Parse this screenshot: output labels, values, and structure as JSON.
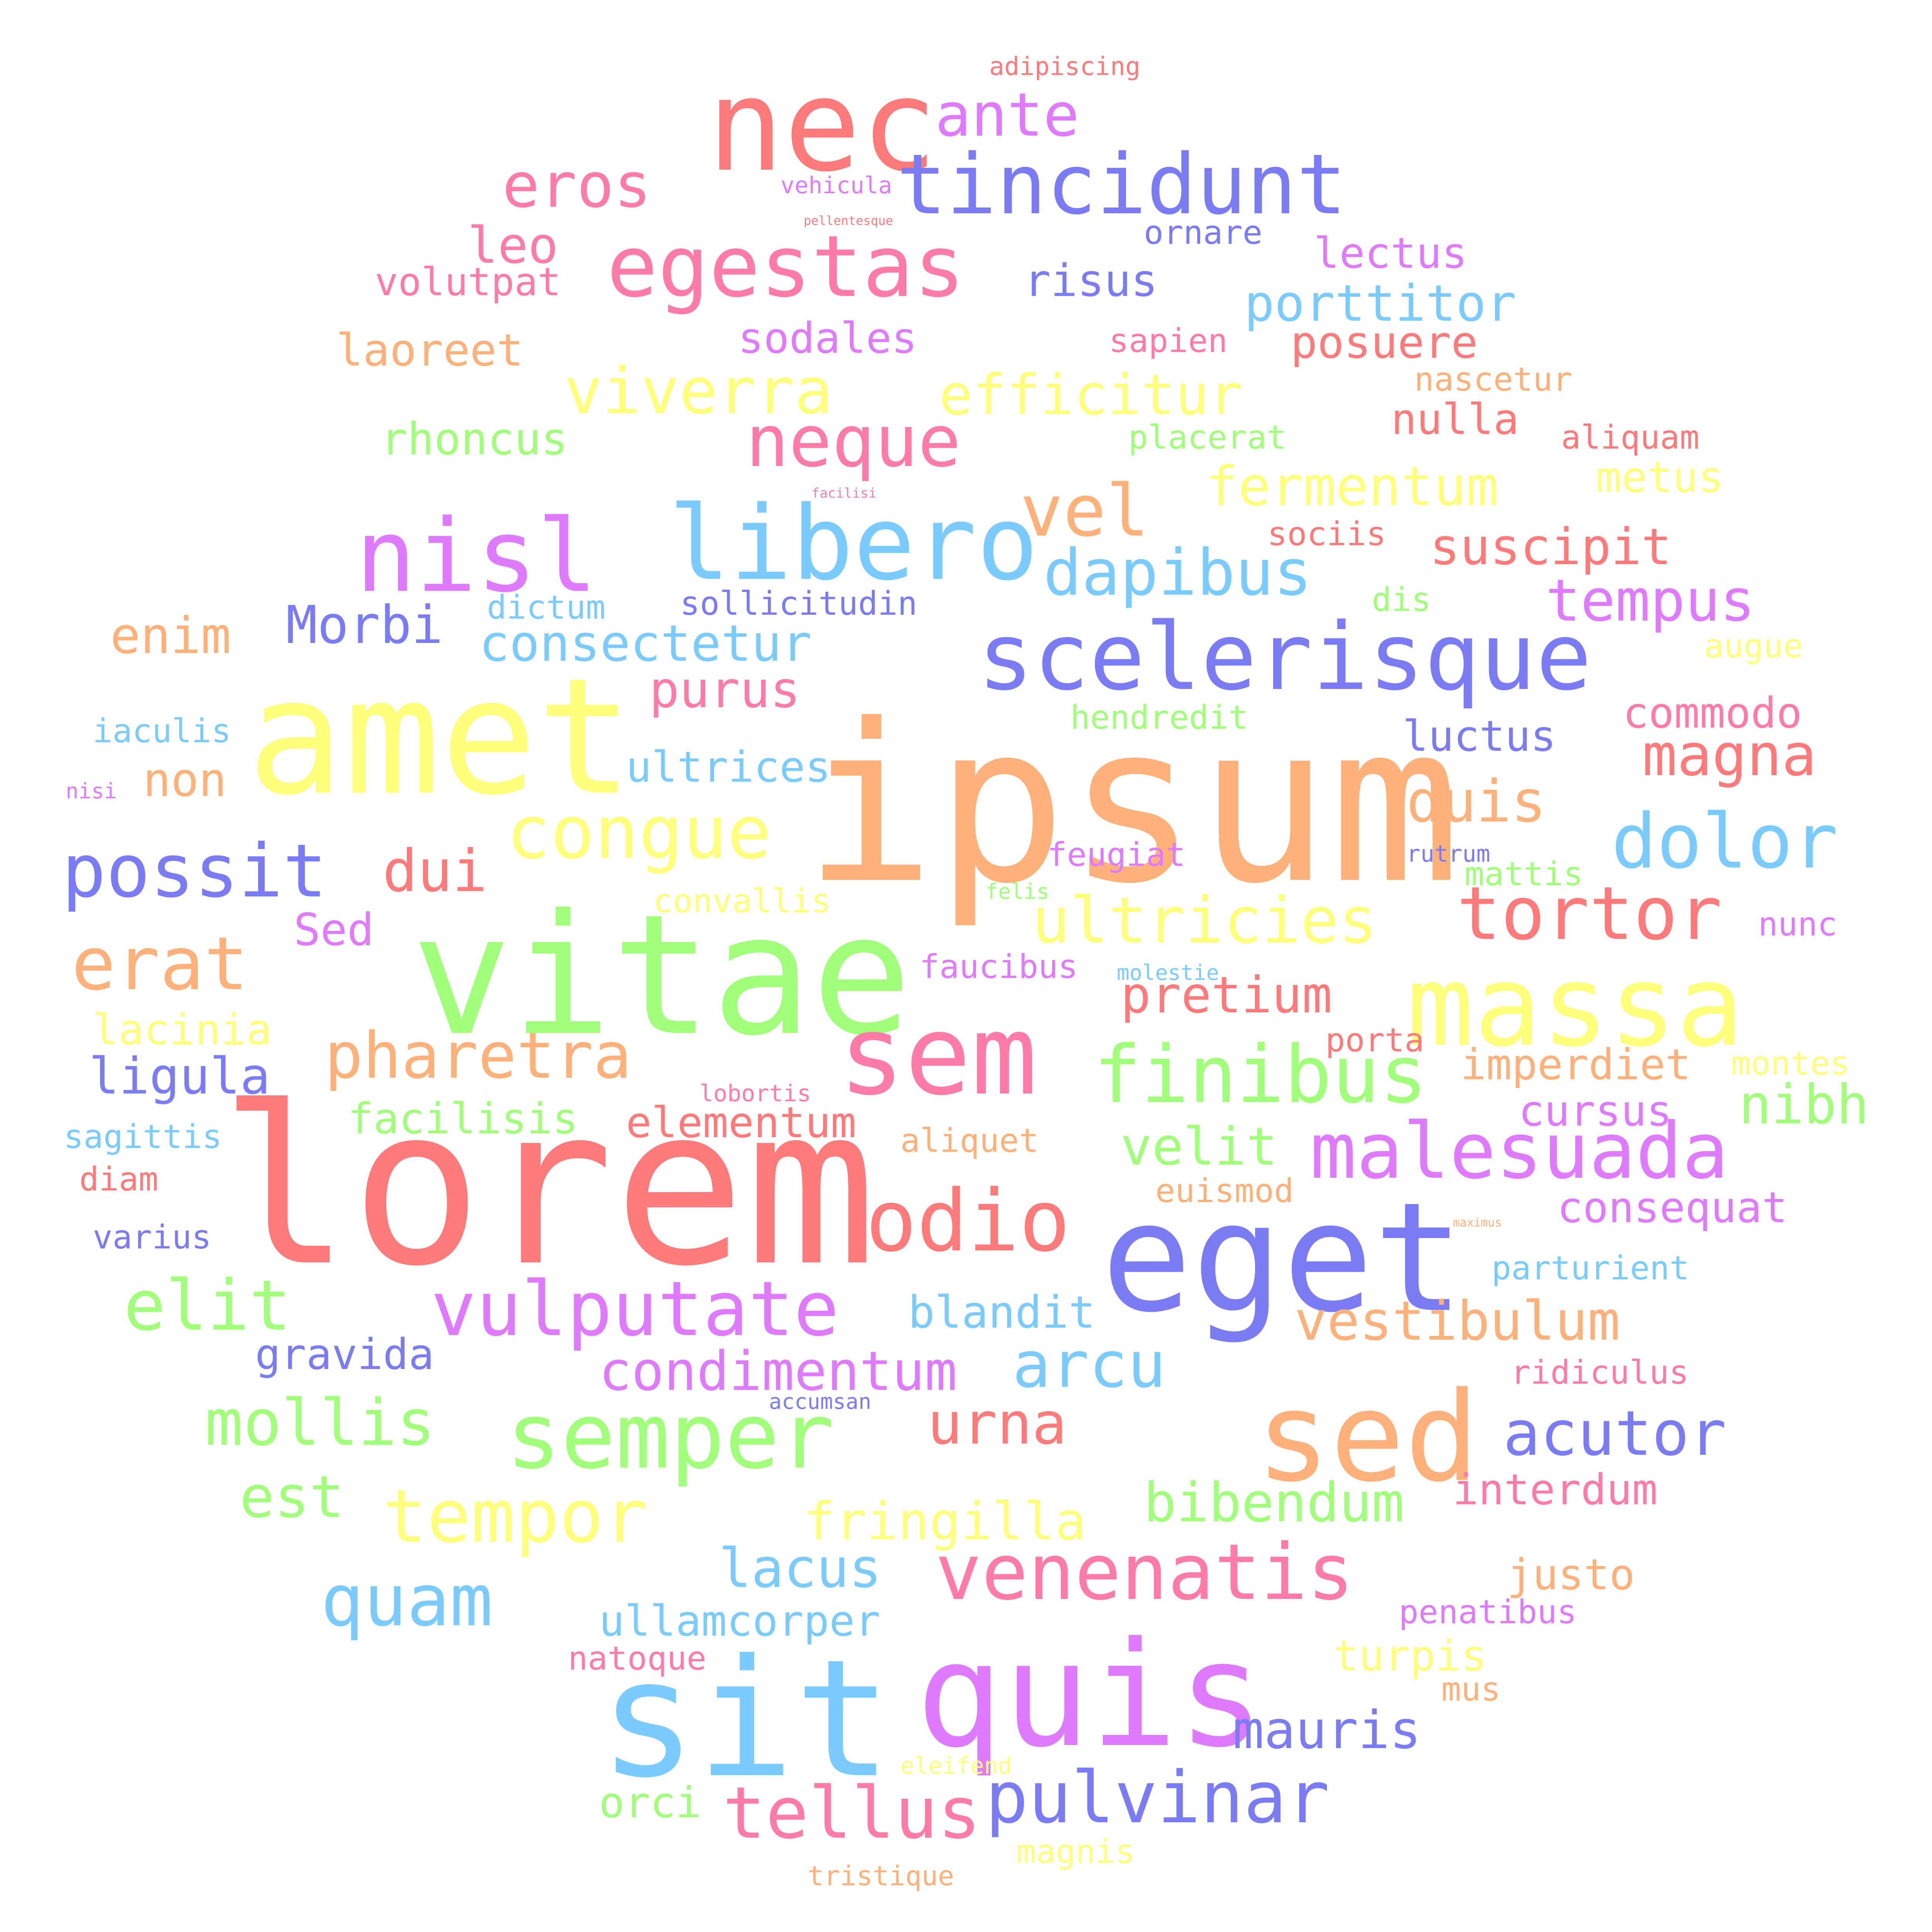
{
  "colors": {
    "red": "#ff7b7b",
    "yellow": "#ffff7b",
    "green": "#a2ff7b",
    "blue": "#7bcbff",
    "indigo": "#7b7bf4",
    "violet": "#df7bff",
    "pink": "#ff7ba8",
    "orange": "#ffb17b",
    "background": "#ffffff"
  },
  "words": [
    "lorem",
    "ipsum",
    "vitae",
    "amet",
    "eget",
    "sit",
    "quis",
    "nec",
    "sed",
    "massa",
    "sem",
    "scelerisque",
    "libero",
    "nisl",
    "odio",
    "semper",
    "tincidunt",
    "egestas",
    "malesuada",
    "finibus",
    "venenatis",
    "vulputate",
    "dolor",
    "tortor",
    "congue",
    "erat",
    "possit",
    "tempor",
    "neque",
    "pulvinar",
    "quam",
    "tellus",
    "vel",
    "dapibus",
    "ultricies",
    "elit",
    "pharetra",
    "efficitur",
    "viverra",
    "arcu",
    "acutor",
    "mollis",
    "eros",
    "magna",
    "duis",
    "condimentum",
    "fermentum",
    "ante",
    "tempus",
    "urna",
    "vestibulum",
    "mauris",
    "lacus",
    "dui",
    "consectetur",
    "bibendum",
    "est",
    "nibh",
    "fringilla",
    "velit",
    "purus",
    "pretium",
    "suscipit",
    "Morbi",
    "porttitor",
    "enim",
    "ligula",
    "blandit",
    "leo",
    "risus",
    "sodales",
    "rhoncus",
    "laoreet",
    "posuere",
    "ullamcorper",
    "non",
    "interdum",
    "ultrices",
    "lectus",
    "nulla",
    "luctus",
    "commodo",
    "elementum",
    "consequat",
    "gravida",
    "Sed",
    "cursus",
    "imperdiet",
    "facilisis",
    "justo",
    "volutpat",
    "turpis",
    "lacinia",
    "sollicitudin",
    "metus",
    "orci",
    "nascetur",
    "aliquam",
    "ornare",
    "parturient",
    "sapien",
    "placerat",
    "penatibus",
    "ridiculus",
    "hendredit",
    "iaculis",
    "dictum",
    "feugiat",
    "faucibus",
    "varius",
    "sagittis",
    "porta",
    "aliquet",
    "euismod",
    "diam",
    "convallis",
    "mattis",
    "nunc",
    "montes",
    "natoque",
    "sociis",
    "magnis",
    "augue",
    "tristique",
    "mus",
    "eleifend",
    "adipiscing",
    "vehicula",
    "dis",
    "lobortis",
    "accumsan",
    "rutrum",
    "felis",
    "molestie",
    "nisi",
    "facilisi",
    "pellentesque",
    "maximus"
  ]
}
